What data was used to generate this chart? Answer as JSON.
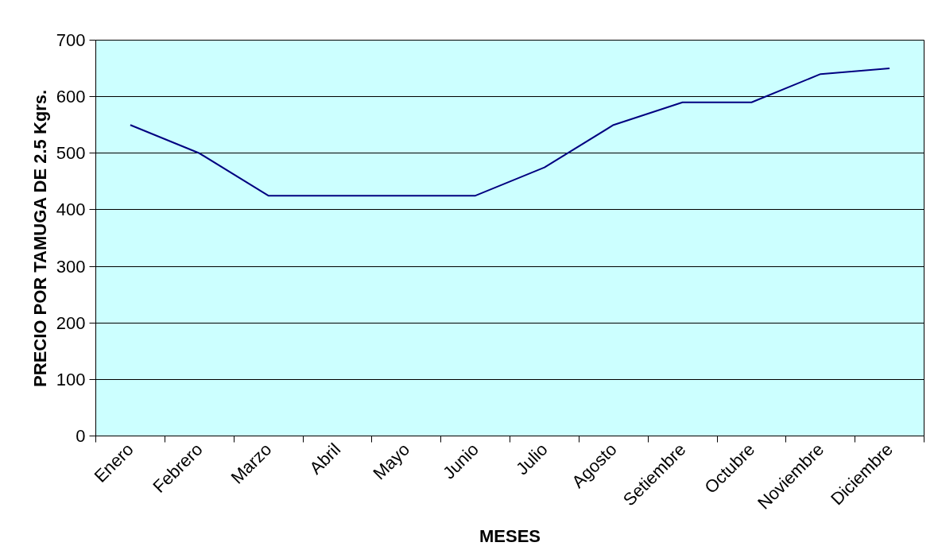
{
  "chart_data": {
    "type": "line",
    "xlabel": "MESES",
    "ylabel": "PRECIO POR TAMUGA DE 2.5 Kgrs.",
    "categories": [
      "Enero",
      "Febrero",
      "Marzo",
      "Abril",
      "Mayo",
      "Junio",
      "Julio",
      "Agosto",
      "Setiembre",
      "Octubre",
      "Noviembre",
      "Diciembre"
    ],
    "series": [
      {
        "color": "#000080",
        "values": [
          550,
          500,
          425,
          425,
          425,
          425,
          475,
          550,
          590,
          590,
          640,
          650
        ]
      }
    ],
    "ylim": [
      0,
      700
    ],
    "yticks": [
      0,
      100,
      200,
      300,
      400,
      500,
      600,
      700
    ],
    "grid": "y",
    "marker": "none",
    "line_style": "solid"
  }
}
